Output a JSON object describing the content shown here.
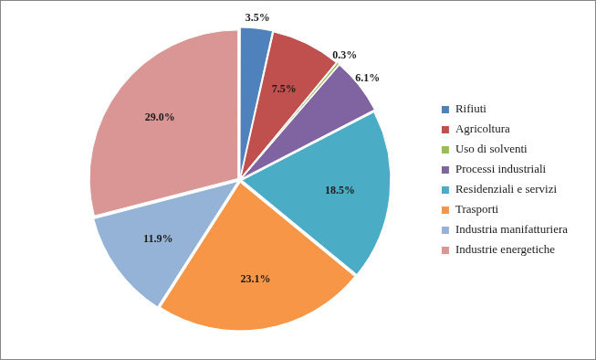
{
  "chart_data": {
    "type": "pie",
    "categories": [
      "Rifiuti",
      "Agricoltura",
      "Uso di solventi",
      "Processi industriali",
      "Residenziali e servizi",
      "Trasporti",
      "Industria manifatturiera",
      "Industrie energetiche"
    ],
    "values": [
      3.5,
      7.5,
      0.3,
      6.1,
      18.5,
      23.1,
      11.9,
      29.0
    ],
    "value_labels": [
      "3.5%",
      "7.5%",
      "0.3%",
      "6.1%",
      "18.5%",
      "23.1%",
      "11.9%",
      "29.0%"
    ],
    "colors": [
      "#4f81bd",
      "#c0504d",
      "#9bbb59",
      "#8064a2",
      "#4bacc6",
      "#f79646",
      "#95b3d7",
      "#d99694"
    ],
    "data_labels": true,
    "legend": "right"
  }
}
